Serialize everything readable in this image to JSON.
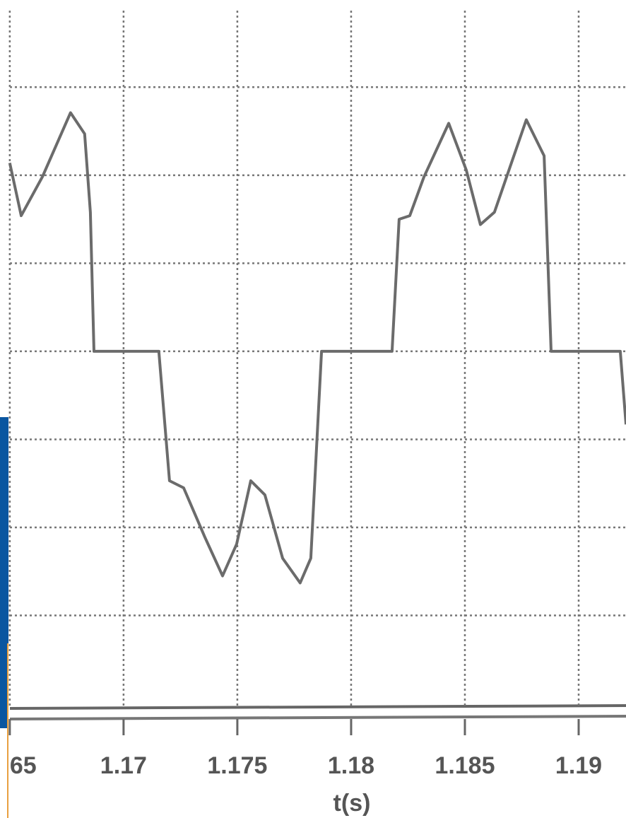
{
  "chart_data": {
    "type": "line",
    "x_label": "t(s)",
    "x": [
      1.165,
      1.1655,
      1.16643,
      1.16767,
      1.16829,
      1.16854,
      1.1687,
      1.17155,
      1.17202,
      1.17264,
      1.17357,
      1.17435,
      1.17497,
      1.17559,
      1.17621,
      1.17699,
      1.17776,
      1.17823,
      1.1787,
      1.1818,
      1.18211,
      1.18258,
      1.1832,
      1.18429,
      1.18506,
      1.18568,
      1.1863,
      1.1877,
      1.18848,
      1.18879,
      1.19183,
      1.19208
    ],
    "series": [
      {
        "color": "#6b6b6b",
        "values": [
          2.14,
          1.54,
          1.98,
          2.71,
          2.47,
          1.58,
          0,
          0,
          -1.47,
          -1.55,
          -2.11,
          -2.55,
          -2.19,
          -1.47,
          -1.63,
          -2.35,
          -2.63,
          -2.35,
          0,
          0,
          1.5,
          1.54,
          1.98,
          2.59,
          2.06,
          1.44,
          1.58,
          2.63,
          2.22,
          0,
          0,
          -0.83
        ]
      }
    ],
    "xlim": [
      1.16457,
      1.19208
    ],
    "xticks": [
      {
        "value": 1.165,
        "label": "65"
      },
      1.17,
      1.175,
      1.18,
      1.185,
      1.19
    ],
    "ylim": [
      -4.16,
      3.99
    ],
    "yticks": [
      -3,
      -2,
      -1,
      0,
      1,
      2,
      3
    ],
    "grid": true
  }
}
